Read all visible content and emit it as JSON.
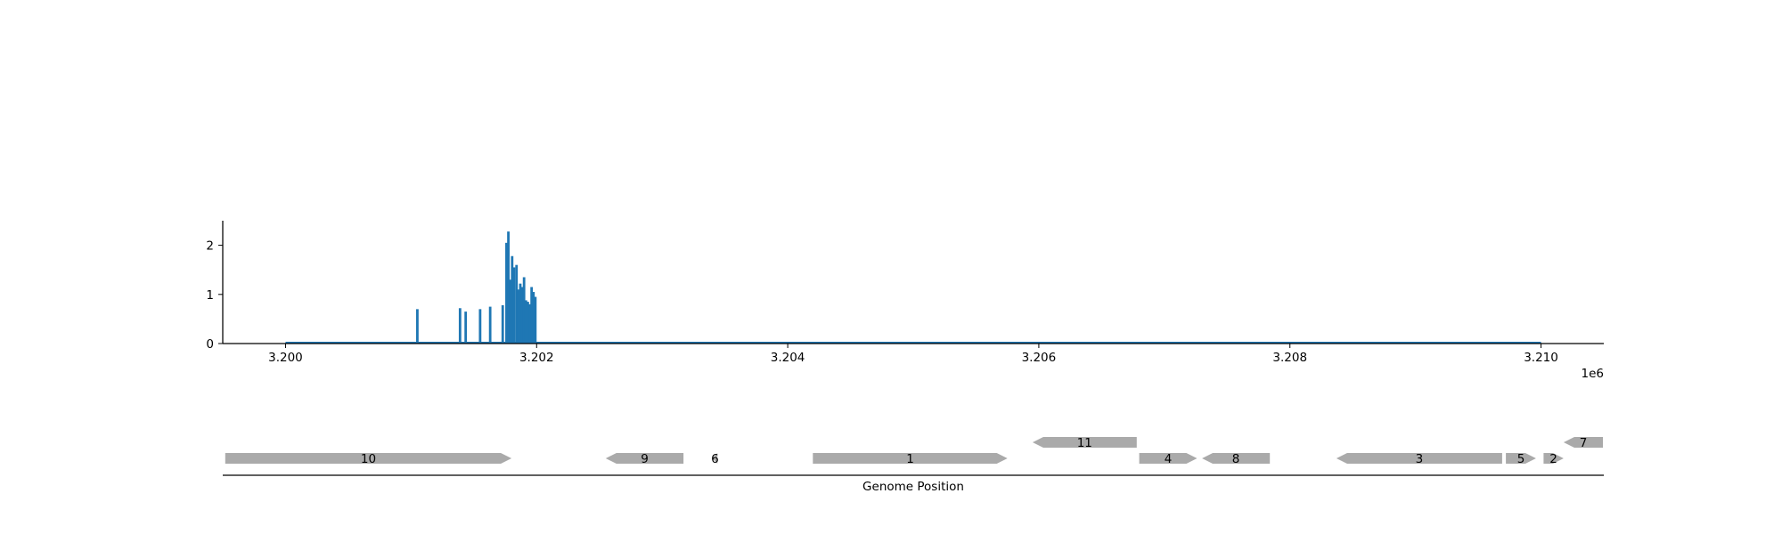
{
  "chart_data": [
    {
      "type": "bar",
      "title": "",
      "xlabel": "",
      "ylabel": "",
      "xlim": [
        3199500,
        3210500
      ],
      "ylim": [
        0,
        2.5
      ],
      "x_ticks": [
        3200000,
        3202000,
        3204000,
        3206000,
        3208000,
        3210000
      ],
      "x_tick_labels": [
        "3.200",
        "3.202",
        "3.204",
        "3.206",
        "3.208",
        "3.210"
      ],
      "x_offset_label": "1e6",
      "y_ticks": [
        0,
        1,
        2
      ],
      "y_tick_labels": [
        "0",
        "1",
        "2"
      ],
      "grid": false,
      "baseline_range": [
        3200000,
        3210000
      ],
      "color": "#1f77b4",
      "x": [
        3201050,
        3201390,
        3201435,
        3201550,
        3201630,
        3201730,
        3201760,
        3201775,
        3201790,
        3201805,
        3201820,
        3201840,
        3201855,
        3201870,
        3201885,
        3201900,
        3201915,
        3201930,
        3201945,
        3201960,
        3201975,
        3201990
      ],
      "values": [
        0.7,
        0.72,
        0.65,
        0.7,
        0.75,
        0.78,
        2.05,
        2.28,
        1.3,
        1.78,
        1.55,
        1.6,
        1.1,
        1.22,
        1.15,
        1.35,
        0.88,
        0.85,
        0.8,
        1.15,
        1.05,
        0.95
      ]
    },
    {
      "type": "gene_map",
      "xlabel": "Genome Position",
      "color": "#aaaaaa",
      "genes": [
        {
          "label": "10",
          "start": 3199520,
          "end": 3201800,
          "strand": "+",
          "row": 0
        },
        {
          "label": "9",
          "start": 3202550,
          "end": 3203170,
          "strand": "-",
          "row": 0
        },
        {
          "label": "6",
          "start": 3203400,
          "end": 3203440,
          "strand": "-",
          "row": 0
        },
        {
          "label": "1",
          "start": 3204200,
          "end": 3205750,
          "strand": "+",
          "row": 0
        },
        {
          "label": "11",
          "start": 3205950,
          "end": 3206780,
          "strand": "-",
          "row": 1
        },
        {
          "label": "4",
          "start": 3206800,
          "end": 3207260,
          "strand": "+",
          "row": 0
        },
        {
          "label": "8",
          "start": 3207300,
          "end": 3207840,
          "strand": "-",
          "row": 0
        },
        {
          "label": "3",
          "start": 3208370,
          "end": 3209690,
          "strand": "-",
          "row": 0
        },
        {
          "label": "5",
          "start": 3209720,
          "end": 3209960,
          "strand": "+",
          "row": 0
        },
        {
          "label": "2",
          "start": 3210020,
          "end": 3210180,
          "strand": "+",
          "row": 0
        },
        {
          "label": "7",
          "start": 3210180,
          "end": 3210500,
          "strand": "-",
          "row": 1
        }
      ]
    }
  ]
}
